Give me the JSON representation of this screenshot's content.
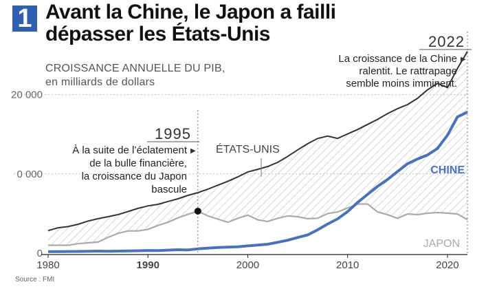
{
  "badge": "1",
  "title_line1": "Avant la Chine, le Japon a failli",
  "title_line2": "dépasser les États-Unis",
  "subtitle_line1": "CROISSANCE ANNUELLE DU PIB,",
  "subtitle_line2": "en milliards de dollars",
  "source": "Source : FMI",
  "colors": {
    "usa": "#333333",
    "china": "#4a72b8",
    "japan": "#bdbdbd",
    "hatch": "#bbbbbb",
    "badge": "#2f5fae"
  },
  "annotations": {
    "y1995": "1995",
    "note1995": [
      "À la suite de l’éclatement",
      "de la bulle financière,",
      "la croissance du Japon",
      "bascule"
    ],
    "y2022": "2022",
    "note2022": [
      "La croissance de la Chine",
      "ralentit. Le rattrapage",
      "semble moins imminent."
    ]
  },
  "chart_data": {
    "type": "line",
    "xlim": [
      1980,
      2022
    ],
    "ylim": [
      0,
      25000
    ],
    "x": [
      1980,
      1981,
      1982,
      1983,
      1984,
      1985,
      1986,
      1987,
      1988,
      1989,
      1990,
      1991,
      1992,
      1993,
      1994,
      1995,
      1996,
      1997,
      1998,
      1999,
      2000,
      2001,
      2002,
      2003,
      2004,
      2005,
      2006,
      2007,
      2008,
      2009,
      2010,
      2011,
      2012,
      2013,
      2014,
      2015,
      2016,
      2017,
      2018,
      2019,
      2020,
      2021,
      2022
    ],
    "xticks": [
      "1980",
      "1990",
      "2000",
      "2010",
      "2020"
    ],
    "yticks": [
      "0",
      "0 000",
      "20 000"
    ],
    "series": [
      {
        "name": "ÉTATS-UNIS",
        "values": [
          2850,
          3200,
          3350,
          3650,
          4050,
          4350,
          4600,
          4870,
          5250,
          5650,
          5960,
          6160,
          6520,
          6860,
          7290,
          7640,
          8070,
          8580,
          9060,
          9630,
          10250,
          10580,
          10940,
          11460,
          12210,
          13040,
          13810,
          14470,
          14770,
          14480,
          15050,
          15600,
          16250,
          16880,
          17610,
          18240,
          18750,
          19540,
          20610,
          21430,
          20890,
          23320,
          25460
        ]
      },
      {
        "name": "CHINE",
        "values": [
          190,
          200,
          210,
          220,
          240,
          260,
          240,
          260,
          280,
          300,
          340,
          330,
          380,
          430,
          400,
          550,
          640,
          710,
          760,
          810,
          920,
          1020,
          1130,
          1370,
          1630,
          1980,
          2300,
          2950,
          3680,
          4330,
          5240,
          6400,
          7420,
          8430,
          9300,
          10300,
          11280,
          11880,
          12400,
          13200,
          14900,
          17200,
          17800
        ]
      },
      {
        "name": "JAPON",
        "values": [
          1000,
          1000,
          1000,
          1200,
          1300,
          1400,
          2000,
          2500,
          2800,
          2800,
          3000,
          3500,
          3900,
          4450,
          4900,
          5300,
          4700,
          4300,
          3900,
          4400,
          4800,
          4200,
          4000,
          4400,
          4700,
          4600,
          4350,
          4400,
          5000,
          5200,
          5700,
          6200,
          6200,
          5200,
          4850,
          4390,
          4950,
          4860,
          5040,
          5120,
          5040,
          4940,
          4230
        ]
      }
    ],
    "highlight_year": 1995,
    "highlight_value": 5300
  }
}
